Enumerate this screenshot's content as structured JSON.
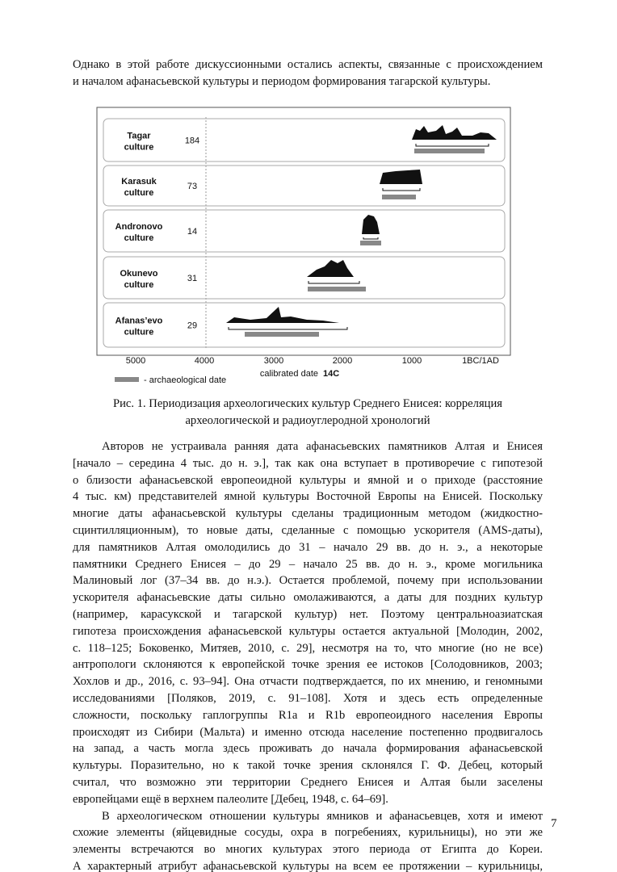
{
  "intro": {
    "lines": [
      "Однако в этой работе дискуссионными остались аспекты, связанные с происхождением",
      "и началом афанасьевской культуры и периодом формирования тагарской культуры."
    ]
  },
  "figure": {
    "panels": [
      {
        "name": "Tagar culture",
        "count": "184"
      },
      {
        "name": "Karasuk culture",
        "count": "73"
      },
      {
        "name": "Andronovo culture",
        "count": "14"
      },
      {
        "name": "Okunevo culture",
        "count": "31"
      },
      {
        "name": "Afanas’evo culture",
        "count": "29"
      }
    ],
    "xticks": [
      "5000",
      "4000",
      "3000",
      "2000",
      "1000",
      "1BC/1AD"
    ],
    "xlabel": "calibrated date",
    "xlabel_suffix": "14C",
    "legend": "- archaeological date"
  },
  "caption": {
    "lines": [
      "Рис. 1. Периодизация археологических культур Среднего Енисея: корреляция",
      "археологической и радиоуглеродной хронологий"
    ]
  },
  "body": {
    "paragraphs": [
      [
        "Авторов не устраивала ранняя дата афанасьевских памятников Алтая и Енисея",
        "[начало – середина 4 тыс. до н. э.], так как она вступает в противоречие с гипотезой",
        "о близости афанасьевской европеоидной культуры и ямной и о приходе (расстояние",
        "4 тыс. км) представителей ямной культуры Восточной Европы на Енисей. Поскольку",
        "многие даты афанасьевской культуры сделаны традиционным методом (жидкостно-",
        "сцинтилляционным), то новые даты, сделанные с помощью ускорителя (AMS-даты),",
        "для памятников Алтая омолодились до 31 – начало 29 вв. до н. э., а некоторые",
        "памятники Среднего Енисея – до 29 – начало 25 вв. до н. э., кроме могильника",
        "Малиновый лог (37–34 вв. до н.э.). Остается проблемой, почему при использовании",
        "ускорителя афанасьевские даты сильно омолаживаются, а даты для поздних культур",
        "(например, карасукской и тагарской культур) нет. Поэтому центральноазиатская",
        "гипотеза происхождения афанасьевской культуры остается актуальной [Молодин, 2002,",
        "с. 118–125; Боковенко, Митяев, 2010, с. 29], несмотря на то, что многие (но не все)",
        "антропологи склоняются к европейской точке зрения ее истоков [Солодовников, 2003;",
        "Хохлов и др., 2016, с. 93–94]. Она отчасти подтверждается, по их мнению, и геномными",
        "исследованиями [Поляков, 2019, с. 91–108]. Хотя и здесь есть определенные",
        "сложности, поскольку гаплогруппы R1a и R1b европеоидного населения Европы",
        "происходят из Сибири (Мальта) и именно отсюда население постепенно продвигалось",
        "на запад, а часть могла здесь проживать до начала формирования афанасьевской",
        "культуры. Поразительно, но к такой точке зрения склонялся Г. Ф. Дебец, который",
        "считал, что возможно эти территории Среднего Енисея и Алтая были заселены",
        "европейцами ещё в верхнем палеолите [Дебец, 1948, с. 64–69]."
      ],
      [
        "В археологическом отношении культуры ямников и афанасьевцев, хотя и имеют",
        "схожие элементы (яйцевидные сосуды, охра в погребениях, курильницы), но эти же",
        "элементы встречаются во многих культурах этого периода от Египта до Кореи.",
        "А характерный атрибут афанасьевской культуры на всем ее протяжении – курильницы,"
      ]
    ]
  },
  "page_number": "7"
}
